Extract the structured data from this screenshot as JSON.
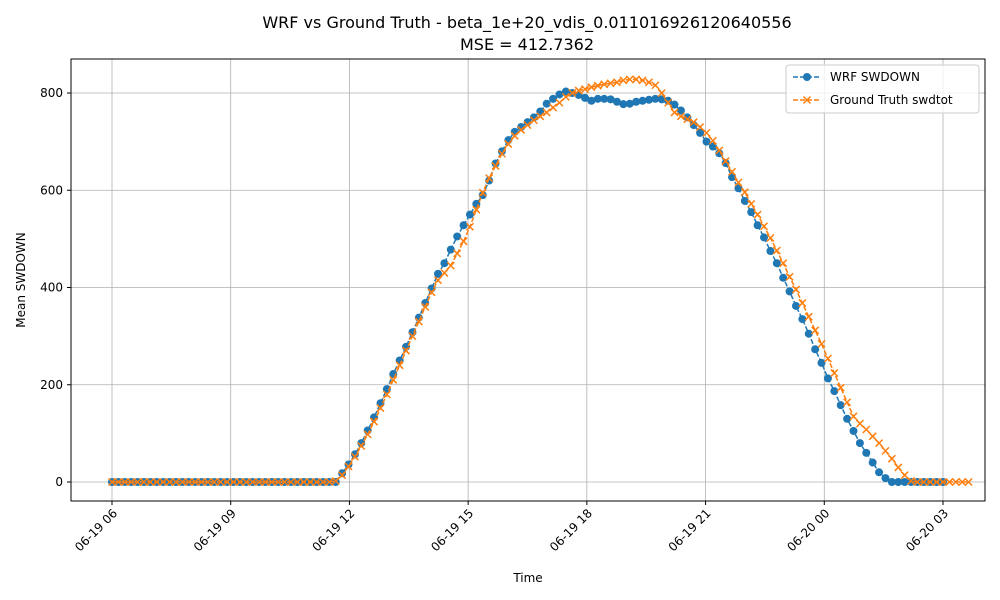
{
  "chart_data": {
    "type": "line",
    "title": "WRF vs Ground Truth - beta_1e+20_vdis_0.011016926120640556",
    "subtitle": "MSE = 412.7362",
    "xlabel": "Time",
    "ylabel": "Mean SWDOWN",
    "x_start_label": "06-19 06",
    "x_end_label": "06-20 03",
    "x_tick_labels": [
      "06-19 06",
      "06-19 09",
      "06-19 12",
      "06-19 15",
      "06-19 18",
      "06-19 21",
      "06-20 00",
      "06-20 03"
    ],
    "y_ticks": [
      0,
      200,
      400,
      600,
      800
    ],
    "ylim": [
      -40,
      870
    ],
    "grid": true,
    "legend": "upper-right",
    "series": [
      {
        "name": "WRF SWDOWN",
        "color": "#1f77b4",
        "marker": "circle",
        "linestyle": "dashed",
        "values": [
          0,
          0,
          0,
          0,
          0,
          0,
          0,
          0,
          0,
          0,
          0,
          0,
          0,
          0,
          0,
          0,
          0,
          0,
          0,
          0,
          0,
          0,
          0,
          0,
          0,
          0,
          0,
          0,
          0,
          0,
          0,
          0,
          0,
          0,
          0,
          0,
          18,
          36,
          57,
          80,
          106,
          133,
          162,
          191,
          222,
          250,
          278,
          308,
          338,
          368,
          398,
          428,
          450,
          478,
          505,
          528,
          550,
          572,
          590,
          620,
          655,
          680,
          703,
          720,
          730,
          740,
          750,
          762,
          778,
          788,
          797,
          803,
          800,
          796,
          790,
          784,
          788,
          788,
          787,
          782,
          777,
          778,
          782,
          784,
          786,
          788,
          787,
          784,
          776,
          764,
          750,
          734,
          718,
          700,
          690,
          676,
          656,
          627,
          604,
          578,
          555,
          528,
          503,
          475,
          450,
          420,
          392,
          362,
          335,
          305,
          273,
          245,
          213,
          187,
          158,
          130,
          105,
          80,
          60,
          40,
          20,
          8,
          0,
          0,
          0,
          0,
          0,
          0,
          0,
          0,
          0
        ]
      },
      {
        "name": "Ground Truth swdtot",
        "color": "#ff7f0e",
        "marker": "x",
        "linestyle": "dashed",
        "values": [
          0,
          0,
          0,
          0,
          0,
          0,
          0,
          0,
          0,
          0,
          0,
          0,
          0,
          0,
          0,
          0,
          0,
          0,
          0,
          0,
          0,
          0,
          0,
          0,
          0,
          0,
          0,
          0,
          0,
          0,
          0,
          0,
          0,
          0,
          0,
          2,
          14,
          32,
          52,
          74,
          98,
          124,
          152,
          180,
          210,
          240,
          270,
          300,
          330,
          360,
          390,
          415,
          430,
          445,
          470,
          495,
          525,
          560,
          595,
          625,
          650,
          675,
          695,
          712,
          724,
          734,
          744,
          752,
          760,
          770,
          780,
          792,
          800,
          805,
          808,
          812,
          815,
          818,
          820,
          822,
          826,
          828,
          828,
          826,
          822,
          816,
          800,
          780,
          760,
          752,
          746,
          740,
          730,
          718,
          702,
          682,
          660,
          638,
          616,
          596,
          572,
          550,
          526,
          502,
          476,
          450,
          422,
          396,
          368,
          340,
          312,
          284,
          254,
          224,
          194,
          164,
          135,
          120,
          108,
          94,
          80,
          64,
          48,
          30,
          14,
          2,
          0,
          0,
          0,
          0,
          0,
          0,
          0,
          0,
          0
        ]
      }
    ]
  }
}
